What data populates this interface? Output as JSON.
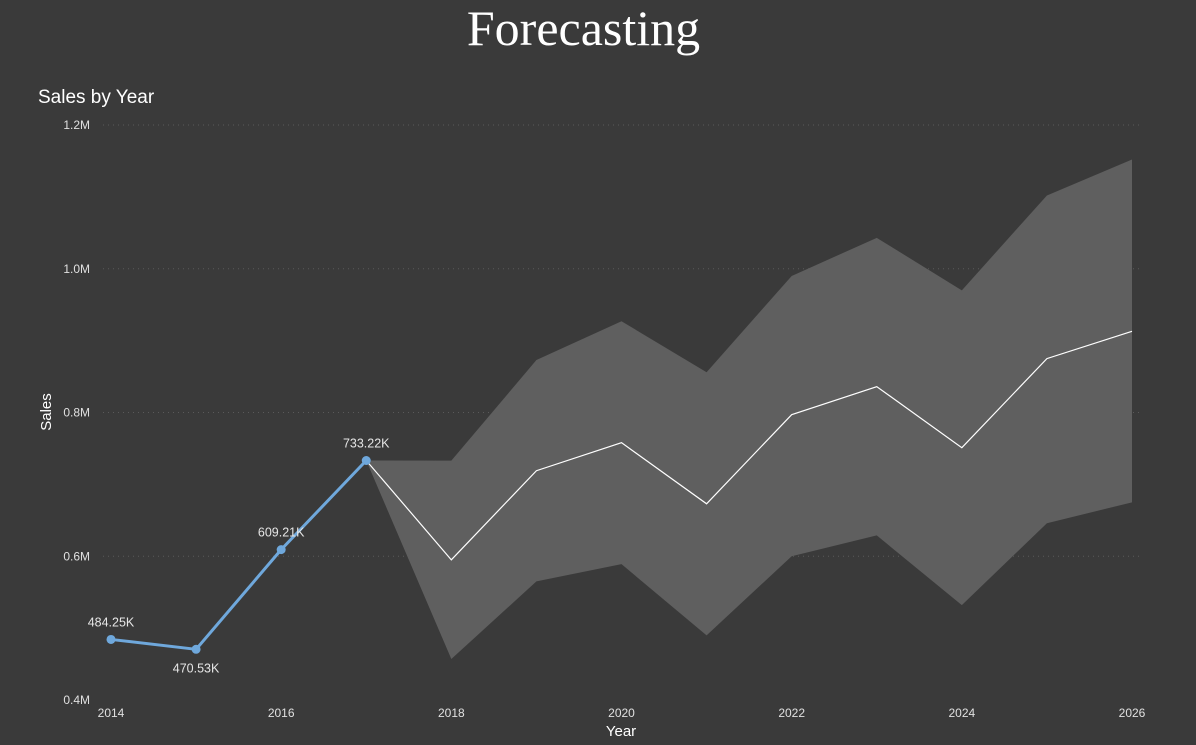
{
  "page": {
    "title": "Forecasting"
  },
  "chart_data": {
    "type": "line",
    "title": "Sales by Year",
    "xlabel": "Year",
    "ylabel": "Sales",
    "xlim": [
      2014,
      2026
    ],
    "ylim": [
      400000,
      1200000
    ],
    "x_ticks": [
      2014,
      2016,
      2018,
      2020,
      2022,
      2024,
      2026
    ],
    "y_ticks": [
      {
        "value": 400000,
        "label": "0.4M"
      },
      {
        "value": 600000,
        "label": "0.6M"
      },
      {
        "value": 800000,
        "label": "0.8M"
      },
      {
        "value": 1000000,
        "label": "1.0M"
      },
      {
        "value": 1200000,
        "label": "1.2M"
      }
    ],
    "grid": "horizontal-dotted",
    "series": [
      {
        "role": "actual",
        "color": "#6fa8dc",
        "x": [
          2014,
          2015,
          2016,
          2017
        ],
        "values": [
          484250,
          470530,
          609210,
          733220
        ],
        "labels": [
          "484.25K",
          "470.53K",
          "609.21K",
          "733.22K"
        ]
      },
      {
        "role": "forecast",
        "color": "#ffffff",
        "x": [
          2017,
          2018,
          2019,
          2020,
          2021,
          2022,
          2023,
          2024,
          2025,
          2026
        ],
        "values": [
          733220,
          595000,
          719000,
          758000,
          673000,
          797000,
          836000,
          751000,
          875000,
          913000
        ]
      },
      {
        "role": "confidence-upper",
        "color": "#5f5f5f",
        "x": [
          2017,
          2018,
          2019,
          2020,
          2021,
          2022,
          2023,
          2024,
          2025,
          2026
        ],
        "values": [
          733220,
          733000,
          873000,
          927000,
          856000,
          990000,
          1043000,
          970000,
          1102000,
          1152000
        ]
      },
      {
        "role": "confidence-lower",
        "color": "#5f5f5f",
        "x": [
          2017,
          2018,
          2019,
          2020,
          2021,
          2022,
          2023,
          2024,
          2025,
          2026
        ],
        "values": [
          733220,
          457000,
          565000,
          589000,
          490000,
          600000,
          629000,
          532000,
          646000,
          675000
        ]
      }
    ]
  }
}
